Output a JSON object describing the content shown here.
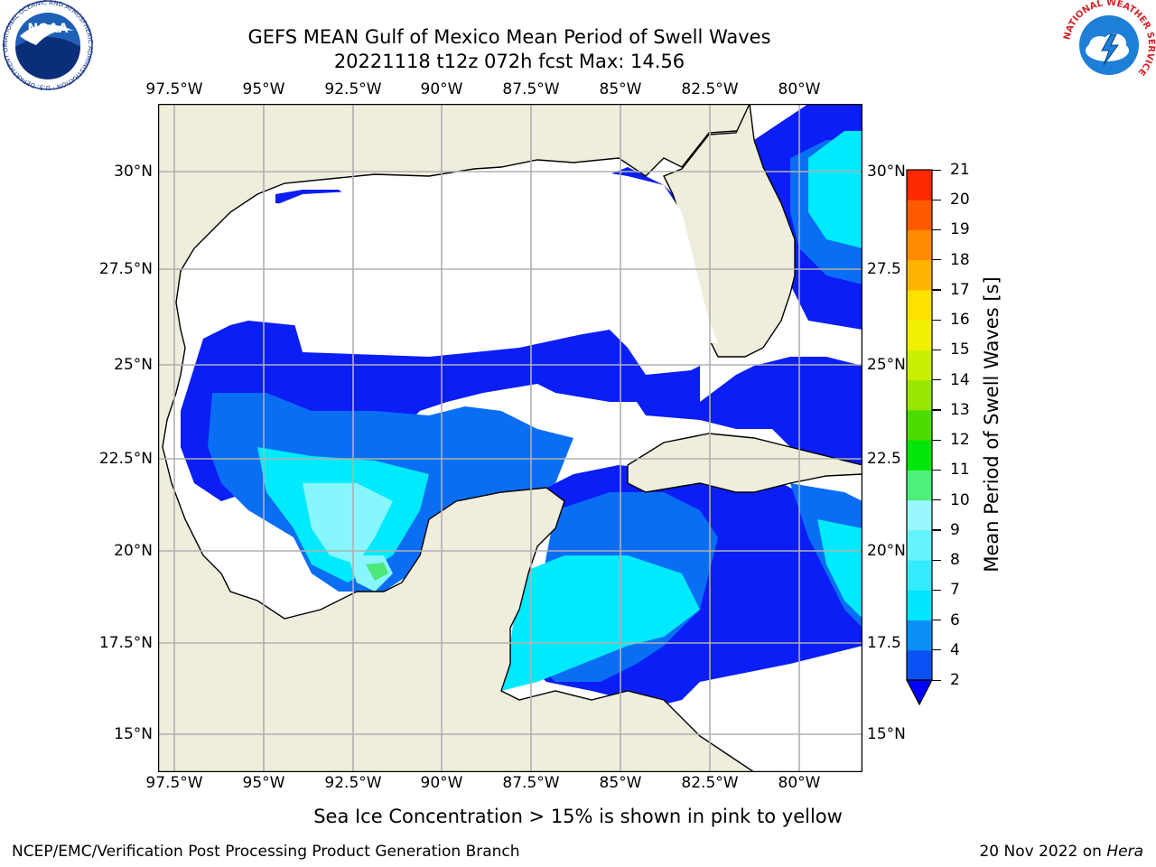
{
  "title": {
    "line1": "GEFS MEAN Gulf of Mexico Mean Period of Swell Waves",
    "line2": "20221118 t12z 072h fcst   Max: 14.56"
  },
  "map": {
    "lon_labels": [
      "97.5°W",
      "95°W",
      "92.5°W",
      "90°W",
      "87.5°W",
      "85°W",
      "82.5°W",
      "80°W"
    ],
    "lat_labels_left": [
      "30°N",
      "27.5°N",
      "25°N",
      "22.5°N",
      "20°N",
      "17.5°N",
      "15°N"
    ],
    "lat_labels_right": [
      "30°N",
      "27.5",
      "25°N",
      "22.5",
      "20°N",
      "17.5",
      "15°N"
    ],
    "land_color": "#efeddc",
    "coast_color": "#000000",
    "grid_color": "#b0b0b0"
  },
  "colorbar": {
    "label": "Mean Period of Swell Waves [s]",
    "ticks": [
      "2",
      "4",
      "6",
      "7",
      "8",
      "9",
      "10",
      "11",
      "12",
      "13",
      "14",
      "15",
      "16",
      "17",
      "18",
      "19",
      "20",
      "21"
    ],
    "colors": [
      "#0a52f5",
      "#0a8ef7",
      "#00e6ff",
      "#33ecff",
      "#66f2ff",
      "#99f8ff",
      "#4cf07a",
      "#00e60a",
      "#4cdc00",
      "#99e600",
      "#c8f000",
      "#f0f000",
      "#ffe100",
      "#ffb400",
      "#ff8c00",
      "#ff5a00",
      "#ff2800",
      "#ff0000"
    ],
    "extend_color": "#0000ff"
  },
  "notes": {
    "ice": "Sea Ice Concentration > 15% is shown in pink to yellow"
  },
  "footer": {
    "left": "NCEP/EMC/Verification Post Processing Product Generation Branch",
    "right_date": "20 Nov 2022 on ",
    "right_machine": "Hera"
  },
  "logos": {
    "noaa_text": "NOAA",
    "noaa_ring": "NATIONAL OCEANIC AND ATMOSPHERIC ADMINISTRATION · U.S. DEPARTMENT OF COMMERCE",
    "nws_ring": "NATIONAL WEATHER SERVICE"
  }
}
